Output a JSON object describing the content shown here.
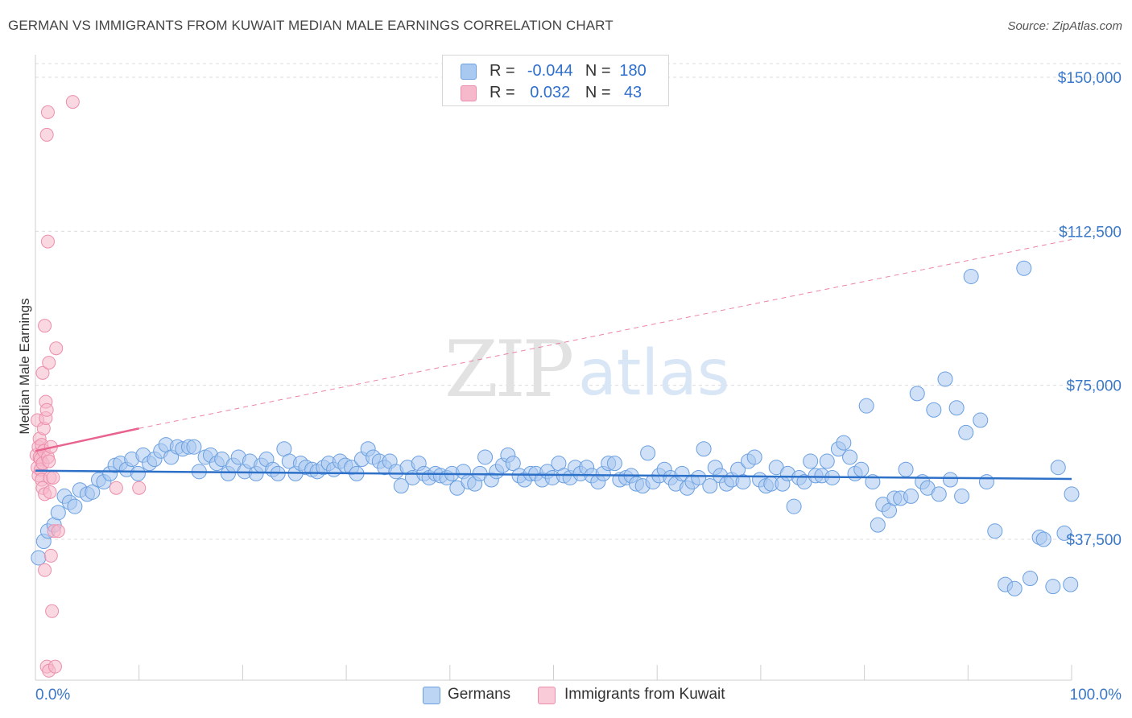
{
  "title": "GERMAN VS IMMIGRANTS FROM KUWAIT MEDIAN MALE EARNINGS CORRELATION CHART",
  "source": "Source: ZipAtlas.com",
  "watermark": {
    "zip": "ZIP",
    "atlas": "atlas"
  },
  "legend": {
    "rows": [
      {
        "r_label": "R =",
        "r_value": "-0.044",
        "n_label": "N =",
        "n_value": "180"
      },
      {
        "r_label": "R =",
        "r_value": "0.032",
        "n_label": "N =",
        "n_value": "43"
      }
    ]
  },
  "colors": {
    "german_fill": "#a9c9f1",
    "german_stroke": "#6a9fe0",
    "german_line": "#2d70c8",
    "kuwait_fill": "#f6b8cb",
    "kuwait_stroke": "#ec8eab",
    "kuwait_line": "#e8648f",
    "grid": "#dcdcdc",
    "axis_text": "#3a78c9"
  },
  "chart_data": {
    "type": "scatter",
    "title": "GERMAN VS IMMIGRANTS FROM KUWAIT MEDIAN MALE EARNINGS CORRELATION CHART",
    "xlabel": "",
    "ylabel": "Median Male Earnings",
    "x_tick_labels": [
      "0.0%",
      "100.0%"
    ],
    "y_tick_labels": [
      "$37,500",
      "$75,000",
      "$112,500",
      "$150,000"
    ],
    "y_ticks": [
      37500,
      75000,
      112500,
      150000
    ],
    "xlim": [
      0,
      100
    ],
    "ylim": [
      0,
      157000
    ],
    "grid": true,
    "series": [
      {
        "name": "Germans",
        "r": -0.044,
        "n": 180,
        "trend": {
          "x0": 0,
          "y0": 54200,
          "x1": 100,
          "y1": 52200
        },
        "points": [
          [
            0.3,
            33000
          ],
          [
            0.8,
            37000
          ],
          [
            1.2,
            39500
          ],
          [
            1.8,
            41000
          ],
          [
            2.2,
            44000
          ],
          [
            2.8,
            48000
          ],
          [
            3.3,
            46500
          ],
          [
            3.8,
            45500
          ],
          [
            4.3,
            49500
          ],
          [
            5.0,
            48500
          ],
          [
            5.5,
            49000
          ],
          [
            6.1,
            52000
          ],
          [
            6.6,
            51500
          ],
          [
            7.2,
            53500
          ],
          [
            7.7,
            55500
          ],
          [
            8.2,
            56000
          ],
          [
            8.8,
            54500
          ],
          [
            9.3,
            57000
          ],
          [
            9.9,
            53500
          ],
          [
            10.4,
            58000
          ],
          [
            11.0,
            56000
          ],
          [
            11.5,
            57000
          ],
          [
            12.1,
            59000
          ],
          [
            12.6,
            60500
          ],
          [
            13.1,
            57500
          ],
          [
            13.7,
            60000
          ],
          [
            14.2,
            59500
          ],
          [
            14.8,
            60000
          ],
          [
            15.3,
            60000
          ],
          [
            15.8,
            54000
          ],
          [
            16.4,
            57500
          ],
          [
            16.9,
            58000
          ],
          [
            17.5,
            56000
          ],
          [
            18.0,
            57000
          ],
          [
            18.6,
            53500
          ],
          [
            19.1,
            55500
          ],
          [
            19.6,
            57500
          ],
          [
            20.2,
            54000
          ],
          [
            20.7,
            56500
          ],
          [
            21.3,
            53500
          ],
          [
            21.8,
            55500
          ],
          [
            22.3,
            57000
          ],
          [
            22.9,
            54500
          ],
          [
            23.4,
            53500
          ],
          [
            24.0,
            59500
          ],
          [
            24.5,
            56500
          ],
          [
            25.1,
            53500
          ],
          [
            25.6,
            56000
          ],
          [
            26.1,
            55000
          ],
          [
            26.7,
            54500
          ],
          [
            27.2,
            54000
          ],
          [
            27.8,
            55000
          ],
          [
            28.3,
            56000
          ],
          [
            28.8,
            54500
          ],
          [
            29.4,
            56500
          ],
          [
            29.9,
            55500
          ],
          [
            30.5,
            55000
          ],
          [
            31.0,
            53500
          ],
          [
            31.5,
            57000
          ],
          [
            32.1,
            59500
          ],
          [
            32.6,
            57500
          ],
          [
            33.2,
            56500
          ],
          [
            33.7,
            55000
          ],
          [
            34.2,
            56500
          ],
          [
            34.8,
            54000
          ],
          [
            35.3,
            50500
          ],
          [
            35.9,
            55000
          ],
          [
            36.4,
            52500
          ],
          [
            37.0,
            56000
          ],
          [
            37.5,
            53500
          ],
          [
            38.0,
            52500
          ],
          [
            38.6,
            53500
          ],
          [
            39.1,
            53000
          ],
          [
            39.7,
            52500
          ],
          [
            40.2,
            53500
          ],
          [
            40.7,
            50000
          ],
          [
            41.3,
            54000
          ],
          [
            41.8,
            51500
          ],
          [
            42.4,
            51000
          ],
          [
            42.9,
            53500
          ],
          [
            43.4,
            57500
          ],
          [
            44.0,
            52000
          ],
          [
            44.5,
            54000
          ],
          [
            45.1,
            55500
          ],
          [
            45.6,
            58000
          ],
          [
            46.1,
            56000
          ],
          [
            46.7,
            53000
          ],
          [
            47.2,
            52000
          ],
          [
            47.8,
            53500
          ],
          [
            48.3,
            53500
          ],
          [
            48.9,
            52000
          ],
          [
            49.4,
            54000
          ],
          [
            49.9,
            52500
          ],
          [
            50.5,
            56000
          ],
          [
            51.0,
            53000
          ],
          [
            51.6,
            52500
          ],
          [
            52.1,
            55000
          ],
          [
            52.6,
            53500
          ],
          [
            53.2,
            55000
          ],
          [
            53.7,
            53000
          ],
          [
            54.3,
            51500
          ],
          [
            54.8,
            53500
          ],
          [
            55.3,
            56000
          ],
          [
            55.9,
            56000
          ],
          [
            56.4,
            52000
          ],
          [
            57.0,
            52500
          ],
          [
            57.5,
            53000
          ],
          [
            58.0,
            51000
          ],
          [
            58.6,
            50500
          ],
          [
            59.1,
            58500
          ],
          [
            59.6,
            51500
          ],
          [
            60.2,
            53000
          ],
          [
            60.7,
            54500
          ],
          [
            61.3,
            52500
          ],
          [
            61.8,
            51000
          ],
          [
            62.4,
            53500
          ],
          [
            62.9,
            50000
          ],
          [
            63.4,
            51500
          ],
          [
            64.0,
            52500
          ],
          [
            64.5,
            59500
          ],
          [
            65.1,
            50500
          ],
          [
            65.6,
            55000
          ],
          [
            66.1,
            53000
          ],
          [
            66.7,
            51000
          ],
          [
            67.2,
            52000
          ],
          [
            67.8,
            54500
          ],
          [
            68.3,
            51500
          ],
          [
            68.8,
            56500
          ],
          [
            69.4,
            57500
          ],
          [
            69.9,
            52000
          ],
          [
            70.5,
            50500
          ],
          [
            71.0,
            51000
          ],
          [
            71.5,
            55000
          ],
          [
            72.1,
            51000
          ],
          [
            72.6,
            53500
          ],
          [
            73.2,
            45500
          ],
          [
            73.7,
            52500
          ],
          [
            74.2,
            51500
          ],
          [
            74.8,
            56500
          ],
          [
            75.3,
            53000
          ],
          [
            75.9,
            53000
          ],
          [
            76.4,
            56500
          ],
          [
            76.9,
            52500
          ],
          [
            77.5,
            59500
          ],
          [
            78.0,
            61000
          ],
          [
            78.6,
            57500
          ],
          [
            79.1,
            53500
          ],
          [
            79.7,
            54500
          ],
          [
            80.2,
            70000
          ],
          [
            80.8,
            51500
          ],
          [
            81.3,
            41000
          ],
          [
            81.8,
            46000
          ],
          [
            82.4,
            44500
          ],
          [
            82.9,
            47500
          ],
          [
            83.5,
            47500
          ],
          [
            84.0,
            54500
          ],
          [
            84.5,
            48000
          ],
          [
            85.1,
            73000
          ],
          [
            85.6,
            51500
          ],
          [
            86.1,
            50000
          ],
          [
            86.7,
            69000
          ],
          [
            87.2,
            48500
          ],
          [
            87.8,
            76500
          ],
          [
            88.3,
            52000
          ],
          [
            88.9,
            69500
          ],
          [
            89.4,
            48000
          ],
          [
            89.8,
            63500
          ],
          [
            90.3,
            101500
          ],
          [
            91.2,
            66500
          ],
          [
            91.8,
            51500
          ],
          [
            92.6,
            39500
          ],
          [
            93.6,
            26500
          ],
          [
            94.5,
            25500
          ],
          [
            95.4,
            103500
          ],
          [
            96.0,
            28000
          ],
          [
            96.9,
            38000
          ],
          [
            97.3,
            37500
          ],
          [
            98.2,
            26000
          ],
          [
            98.7,
            55000
          ],
          [
            99.3,
            39000
          ],
          [
            99.9,
            26500
          ],
          [
            100.0,
            48500
          ]
        ]
      },
      {
        "name": "Immigrants from Kuwait",
        "r": 0.032,
        "n": 43,
        "trend": {
          "x0": 0,
          "y0": 59000,
          "x1": 10,
          "y1": 64500,
          "dashed_x1": 100,
          "dashed_y1": 110500
        },
        "points": [
          [
            0.1,
            58000
          ],
          [
            0.2,
            55000
          ],
          [
            0.2,
            66500
          ],
          [
            0.3,
            60000
          ],
          [
            0.3,
            53000
          ],
          [
            0.4,
            62000
          ],
          [
            0.4,
            57500
          ],
          [
            0.5,
            57000
          ],
          [
            0.5,
            54500
          ],
          [
            0.6,
            52000
          ],
          [
            0.6,
            60500
          ],
          [
            0.7,
            56000
          ],
          [
            0.7,
            50000
          ],
          [
            0.7,
            78000
          ],
          [
            0.8,
            64500
          ],
          [
            0.8,
            59000
          ],
          [
            0.9,
            48500
          ],
          [
            0.9,
            30000
          ],
          [
            0.9,
            89500
          ],
          [
            1.0,
            71000
          ],
          [
            1.0,
            67000
          ],
          [
            1.1,
            69000
          ],
          [
            1.1,
            136000
          ],
          [
            1.1,
            6500
          ],
          [
            1.2,
            57500
          ],
          [
            1.2,
            110000
          ],
          [
            1.2,
            141500
          ],
          [
            1.3,
            80500
          ],
          [
            1.3,
            56500
          ],
          [
            1.3,
            5500
          ],
          [
            1.4,
            49000
          ],
          [
            1.4,
            52500
          ],
          [
            1.5,
            60000
          ],
          [
            1.5,
            33500
          ],
          [
            1.6,
            20000
          ],
          [
            1.7,
            52500
          ],
          [
            1.8,
            39500
          ],
          [
            1.9,
            6500
          ],
          [
            2.0,
            84000
          ],
          [
            2.2,
            39500
          ],
          [
            3.6,
            144000
          ],
          [
            7.8,
            50000
          ],
          [
            10.0,
            50000
          ]
        ]
      }
    ],
    "legend": [
      "Germans",
      "Immigrants from Kuwait"
    ]
  }
}
